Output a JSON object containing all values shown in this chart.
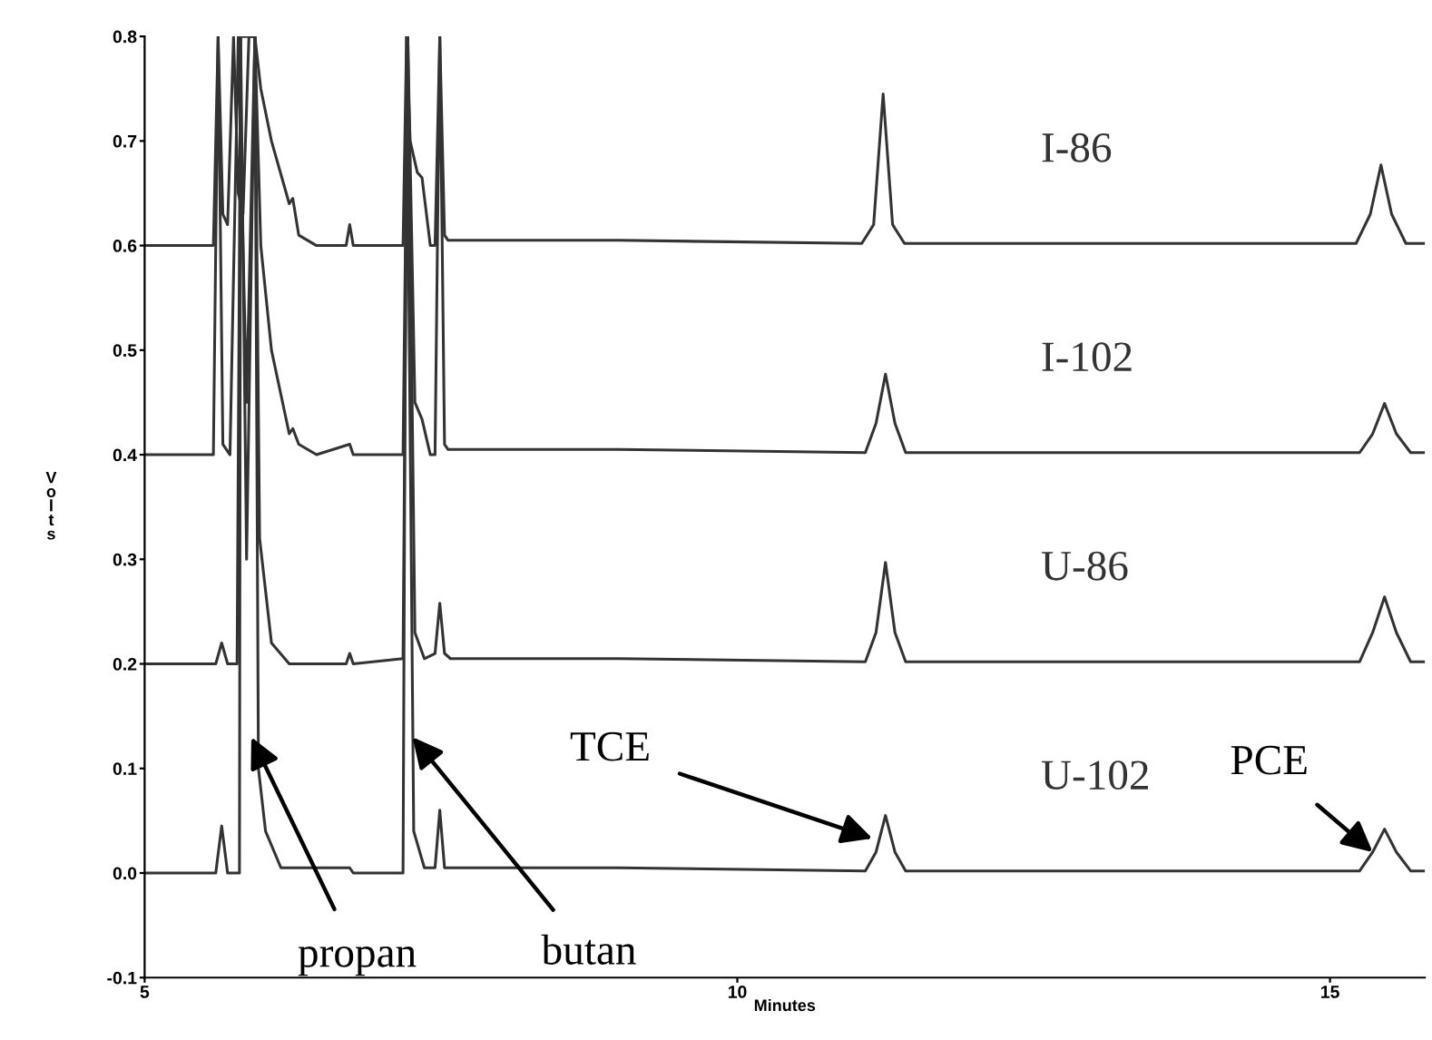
{
  "chart_data": {
    "type": "line",
    "xlabel": "Minutes",
    "ylabel": "Volts",
    "xlim": [
      5,
      15.8
    ],
    "ylim": [
      -0.1,
      0.8
    ],
    "xticks": [
      5,
      10,
      15
    ],
    "yticks": [
      -0.1,
      {
        "value": 0.0,
        "label": "0.0"
      },
      0.1,
      0.2,
      0.3,
      0.4,
      0.5,
      0.6,
      0.7,
      0.8
    ],
    "grid": false,
    "legend": false,
    "marker": "none",
    "line_style": "solid",
    "series": [
      {
        "name": "I-86",
        "color": "#333333",
        "x": [
          5.0,
          5.58,
          5.62,
          5.66,
          5.7,
          5.75,
          5.79,
          5.83,
          5.88,
          5.93,
          5.98,
          6.07,
          6.22,
          6.25,
          6.3,
          6.45,
          6.7,
          6.73,
          6.76,
          7.18,
          7.21,
          7.24,
          7.3,
          7.34,
          7.41,
          7.45,
          7.49,
          7.53,
          7.56,
          8.0,
          9.0,
          11.05,
          11.15,
          11.23,
          11.31,
          11.41,
          15.22,
          15.34,
          15.43,
          15.52,
          15.64,
          15.8
        ],
        "values": [
          0.6,
          0.6,
          0.8,
          0.63,
          0.62,
          0.8,
          0.65,
          0.63,
          0.8,
          0.8,
          0.75,
          0.7,
          0.64,
          0.645,
          0.61,
          0.6,
          0.6,
          0.62,
          0.6,
          0.6,
          0.8,
          0.7,
          0.67,
          0.665,
          0.6,
          0.6,
          0.8,
          0.61,
          0.605,
          0.605,
          0.605,
          0.602,
          0.62,
          0.745,
          0.62,
          0.602,
          0.602,
          0.63,
          0.677,
          0.63,
          0.602,
          0.602
        ]
      },
      {
        "name": "I-102",
        "color": "#333333",
        "x": [
          5.0,
          5.58,
          5.62,
          5.66,
          5.72,
          5.79,
          5.86,
          5.93,
          5.98,
          6.07,
          6.22,
          6.25,
          6.3,
          6.45,
          6.73,
          6.76,
          6.8,
          7.18,
          7.22,
          7.28,
          7.34,
          7.41,
          7.45,
          7.49,
          7.53,
          7.56,
          9.0,
          11.08,
          11.17,
          11.25,
          11.33,
          11.42,
          15.25,
          15.36,
          15.46,
          15.56,
          15.68,
          15.8
        ],
        "values": [
          0.4,
          0.4,
          0.8,
          0.41,
          0.4,
          0.8,
          0.45,
          0.8,
          0.6,
          0.5,
          0.42,
          0.425,
          0.41,
          0.4,
          0.41,
          0.4,
          0.4,
          0.4,
          0.8,
          0.45,
          0.434,
          0.4,
          0.4,
          0.8,
          0.41,
          0.405,
          0.405,
          0.402,
          0.43,
          0.477,
          0.43,
          0.402,
          0.402,
          0.42,
          0.449,
          0.42,
          0.402,
          0.402
        ]
      },
      {
        "name": "U-86",
        "color": "#333333",
        "x": [
          5.0,
          5.6,
          5.65,
          5.7,
          5.78,
          5.81,
          5.86,
          5.93,
          5.97,
          6.07,
          6.22,
          6.7,
          6.73,
          6.76,
          7.18,
          7.22,
          7.28,
          7.36,
          7.45,
          7.49,
          7.53,
          7.58,
          9.0,
          11.08,
          11.17,
          11.25,
          11.33,
          11.42,
          15.25,
          15.36,
          15.46,
          15.56,
          15.68,
          15.8
        ],
        "values": [
          0.2,
          0.2,
          0.22,
          0.2,
          0.2,
          0.8,
          0.3,
          0.8,
          0.32,
          0.22,
          0.2,
          0.2,
          0.21,
          0.2,
          0.205,
          0.8,
          0.23,
          0.205,
          0.21,
          0.258,
          0.21,
          0.205,
          0.205,
          0.202,
          0.23,
          0.297,
          0.23,
          0.202,
          0.202,
          0.23,
          0.264,
          0.23,
          0.202,
          0.202
        ]
      },
      {
        "name": "U-102",
        "color": "#333333",
        "x": [
          5.0,
          5.6,
          5.65,
          5.7,
          5.8,
          5.81,
          5.93,
          5.96,
          6.02,
          6.15,
          6.73,
          6.76,
          7.18,
          7.21,
          7.27,
          7.36,
          7.45,
          7.49,
          7.53,
          9.0,
          11.08,
          11.17,
          11.25,
          11.33,
          11.42,
          15.25,
          15.36,
          15.46,
          15.56,
          15.68,
          15.8
        ],
        "values": [
          0.0,
          0.0,
          0.045,
          0.0,
          0.0,
          0.8,
          0.8,
          0.1,
          0.04,
          0.005,
          0.005,
          0.0,
          0.0,
          0.8,
          0.04,
          0.005,
          0.005,
          0.06,
          0.005,
          0.005,
          0.002,
          0.02,
          0.055,
          0.02,
          0.002,
          0.002,
          0.02,
          0.042,
          0.02,
          0.002,
          0.002
        ]
      }
    ],
    "annotations": [
      {
        "text": "propan",
        "x": 5.9,
        "y": 0.13
      },
      {
        "text": "butan",
        "x": 7.26,
        "y": 0.13
      },
      {
        "text": "TCE",
        "x": 11.14,
        "y": 0.033
      },
      {
        "text": "PCE",
        "x": 15.36,
        "y": 0.02
      }
    ]
  }
}
